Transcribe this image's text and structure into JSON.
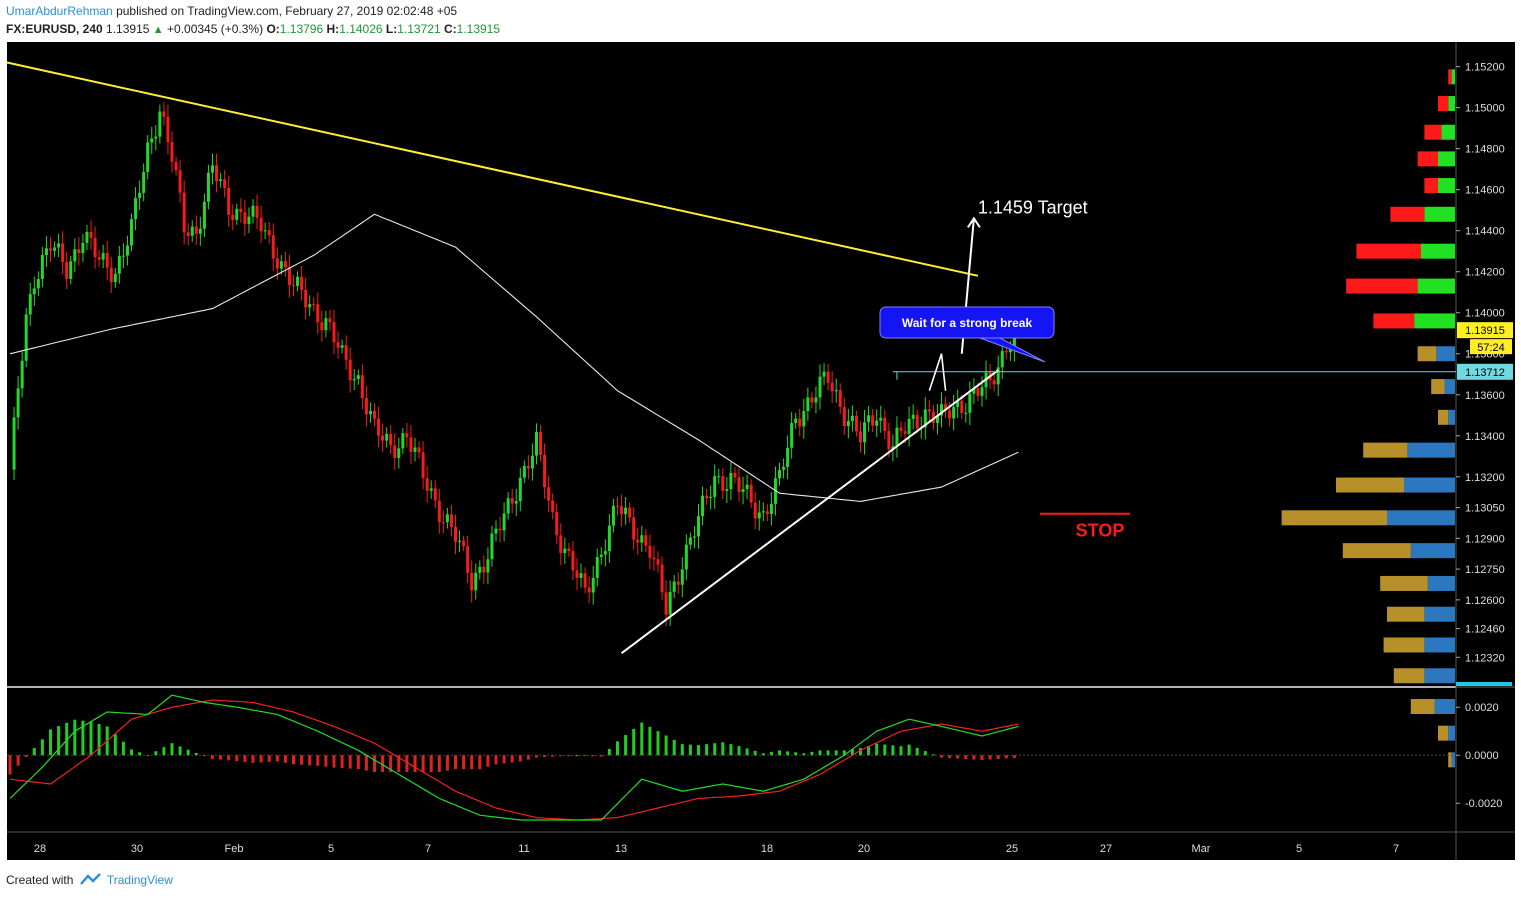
{
  "header": {
    "author": "UmarAbdurRehman",
    "published_text": "published on TradingView.com, February 27, 2019 02:02:48 +05",
    "symbol": "FX:EURUSD, 240",
    "last": "1.13915",
    "change": "+0.00345 (+0.3%)",
    "o_label": "O:",
    "o_value": "1.13796",
    "h_label": "H:",
    "h_value": "1.14026",
    "l_label": "L:",
    "l_value": "1.13721",
    "c_label": "C:",
    "c_value": "1.13915"
  },
  "footer": {
    "created_with": "Created with",
    "brand": "TradingView"
  },
  "colors": {
    "background": "#000000",
    "up": "#22d82a",
    "down": "#f51c1c",
    "trendline": "#ffee33",
    "ma": "#e8e8e8",
    "support": "#ffffff",
    "resistance": "#6fd8e0",
    "vp_up_green": "#22e022",
    "vp_down_red": "#ff1a1a",
    "vp_up_blue": "#2b78c0",
    "vp_down_gold": "#b8902a",
    "macd_line": "#22dd22",
    "signal_line": "#ee2222"
  },
  "annotations": {
    "target_label": "1.1459 Target",
    "callout": "Wait for a strong break",
    "stop_label": "STOP",
    "price_badge": "1.13915",
    "countdown": "57:24",
    "level_badge": "1.13712"
  },
  "chart_data": [
    {
      "type": "candlestick",
      "title": "FX:EURUSD, 240",
      "x_ticks": [
        "28",
        "30",
        "Feb",
        "5",
        "7",
        "11",
        "13",
        "18",
        "20",
        "25",
        "27",
        "Mar",
        "5",
        "7"
      ],
      "y_ticks": [
        "1.15200",
        "1.15000",
        "1.14800",
        "1.14600",
        "1.14400",
        "1.14200",
        "1.14000",
        "1.13800",
        "1.13600",
        "1.13400",
        "1.13200",
        "1.13050",
        "1.12900",
        "1.12750",
        "1.12600",
        "1.12460",
        "1.12320"
      ],
      "ylim": [
        1.1218,
        1.1532
      ],
      "anchor_closes": [
        [
          0,
          1.1321
        ],
        [
          2,
          1.1362
        ],
        [
          4,
          1.1398
        ],
        [
          6,
          1.1418
        ],
        [
          10,
          1.1432
        ],
        [
          14,
          1.1422
        ],
        [
          18,
          1.1438
        ],
        [
          22,
          1.1425
        ],
        [
          26,
          1.1421
        ],
        [
          30,
          1.144
        ],
        [
          34,
          1.148
        ],
        [
          37,
          1.15
        ],
        [
          40,
          1.1475
        ],
        [
          43,
          1.1442
        ],
        [
          46,
          1.144
        ],
        [
          50,
          1.147
        ],
        [
          54,
          1.1452
        ],
        [
          58,
          1.1448
        ],
        [
          62,
          1.1442
        ],
        [
          66,
          1.1428
        ],
        [
          70,
          1.1412
        ],
        [
          74,
          1.1405
        ],
        [
          78,
          1.1395
        ],
        [
          82,
          1.1378
        ],
        [
          86,
          1.1368
        ],
        [
          90,
          1.1342
        ],
        [
          94,
          1.1335
        ],
        [
          98,
          1.134
        ],
        [
          102,
          1.132
        ],
        [
          106,
          1.1305
        ],
        [
          110,
          1.129
        ],
        [
          114,
          1.127
        ],
        [
          118,
          1.1282
        ],
        [
          122,
          1.13
        ],
        [
          126,
          1.132
        ],
        [
          130,
          1.1335
        ],
        [
          134,
          1.13
        ],
        [
          138,
          1.128
        ],
        [
          142,
          1.1262
        ],
        [
          146,
          1.1285
        ],
        [
          150,
          1.1305
        ],
        [
          154,
          1.1295
        ],
        [
          158,
          1.1285
        ],
        [
          162,
          1.1255
        ],
        [
          166,
          1.128
        ],
        [
          170,
          1.1298
        ],
        [
          174,
          1.132
        ],
        [
          178,
          1.1318
        ],
        [
          182,
          1.131
        ],
        [
          186,
          1.1302
        ],
        [
          190,
          1.1318
        ],
        [
          194,
          1.135
        ],
        [
          198,
          1.1358
        ],
        [
          202,
          1.1368
        ],
        [
          206,
          1.1352
        ],
        [
          210,
          1.1338
        ],
        [
          214,
          1.1352
        ],
        [
          218,
          1.1335
        ],
        [
          222,
          1.1345
        ],
        [
          226,
          1.1352
        ],
        [
          230,
          1.1348
        ],
        [
          234,
          1.1355
        ],
        [
          238,
          1.136
        ],
        [
          242,
          1.1365
        ],
        [
          246,
          1.1385
        ],
        [
          249,
          1.1392
        ]
      ],
      "series": [
        {
          "name": "",
          "type": "ma",
          "points": [
            [
              0,
              1.138
            ],
            [
              25,
              1.1392
            ],
            [
              50,
              1.1402
            ],
            [
              75,
              1.1428
            ],
            [
              90,
              1.1448
            ],
            [
              110,
              1.1432
            ],
            [
              130,
              1.1398
            ],
            [
              150,
              1.1362
            ],
            [
              170,
              1.1338
            ],
            [
              190,
              1.1312
            ],
            [
              210,
              1.1308
            ],
            [
              230,
              1.1315
            ],
            [
              249,
              1.1332
            ]
          ]
        }
      ],
      "drawings": {
        "trendline": {
          "from": [
            0,
            1.1522
          ],
          "to": [
            239,
            1.1418
          ]
        },
        "support": {
          "from": [
            151,
            1.1234
          ],
          "to": [
            244,
            1.1372
          ]
        },
        "resistance_level": 1.13712,
        "target_arrow": {
          "from": [
            235,
            1.138
          ],
          "to": [
            238,
            1.1446
          ],
          "label_value": 1.1459
        },
        "stop_level": 1.1302
      }
    },
    {
      "type": "volume_profile",
      "bins": [
        {
          "price": 1.1515,
          "up": 0.02,
          "down": 0.02
        },
        {
          "price": 1.1502,
          "up": 0.04,
          "down": 0.06
        },
        {
          "price": 1.1488,
          "up": 0.08,
          "down": 0.1
        },
        {
          "price": 1.1475,
          "up": 0.1,
          "down": 0.12
        },
        {
          "price": 1.1462,
          "up": 0.1,
          "down": 0.08
        },
        {
          "price": 1.1448,
          "up": 0.18,
          "down": 0.2
        },
        {
          "price": 1.143,
          "up": 0.2,
          "down": 0.38
        },
        {
          "price": 1.1413,
          "up": 0.22,
          "down": 0.42
        },
        {
          "price": 1.1396,
          "up": 0.24,
          "down": 0.24
        },
        {
          "price": 1.138,
          "up": 0.11,
          "down": 0.11
        },
        {
          "price": 1.1364,
          "up": 0.06,
          "down": 0.08
        },
        {
          "price": 1.1349,
          "up": 0.04,
          "down": 0.06
        },
        {
          "price": 1.1333,
          "up": 0.28,
          "down": 0.26
        },
        {
          "price": 1.1316,
          "up": 0.3,
          "down": 0.4
        },
        {
          "price": 1.13,
          "up": 0.4,
          "down": 0.62
        },
        {
          "price": 1.1284,
          "up": 0.26,
          "down": 0.4
        },
        {
          "price": 1.1268,
          "up": 0.16,
          "down": 0.28
        },
        {
          "price": 1.1253,
          "up": 0.18,
          "down": 0.22
        },
        {
          "price": 1.1238,
          "up": 0.18,
          "down": 0.24
        },
        {
          "price": 1.1223,
          "up": 0.18,
          "down": 0.18
        },
        {
          "price": 1.1208,
          "up": 0.12,
          "down": 0.14
        },
        {
          "price": 1.1195,
          "up": 0.04,
          "down": 0.06
        },
        {
          "price": 1.1182,
          "up": 0.02,
          "down": 0.02
        }
      ]
    },
    {
      "type": "macd",
      "y_ticks": [
        "0.0020",
        "0.0000",
        "-0.0020"
      ],
      "ylim": [
        -0.0032,
        0.0028
      ],
      "series": [
        {
          "name": "",
          "points": [
            [
              0,
              -0.0018
            ],
            [
              8,
              -0.0005
            ],
            [
              16,
              0.001
            ],
            [
              24,
              0.0018
            ],
            [
              34,
              0.0017
            ],
            [
              40,
              0.0025
            ],
            [
              48,
              0.0022
            ],
            [
              56,
              0.002
            ],
            [
              66,
              0.0017
            ],
            [
              76,
              0.001
            ],
            [
              86,
              0.0002
            ],
            [
              96,
              -0.0008
            ],
            [
              106,
              -0.0018
            ],
            [
              116,
              -0.0025
            ],
            [
              126,
              -0.0027
            ],
            [
              136,
              -0.0027
            ],
            [
              146,
              -0.0027
            ],
            [
              156,
              -0.001
            ],
            [
              166,
              -0.0015
            ],
            [
              176,
              -0.0012
            ],
            [
              186,
              -0.0015
            ],
            [
              196,
              -0.001
            ],
            [
              206,
              0.0
            ],
            [
              214,
              0.001
            ],
            [
              222,
              0.0015
            ],
            [
              230,
              0.0012
            ],
            [
              240,
              0.0008
            ],
            [
              249,
              0.0012
            ]
          ]
        },
        {
          "name": "",
          "points": [
            [
              0,
              -0.001
            ],
            [
              10,
              -0.0012
            ],
            [
              20,
              0.0
            ],
            [
              30,
              0.0015
            ],
            [
              40,
              0.002
            ],
            [
              50,
              0.0023
            ],
            [
              60,
              0.0022
            ],
            [
              70,
              0.0018
            ],
            [
              80,
              0.0012
            ],
            [
              90,
              0.0005
            ],
            [
              100,
              -0.0005
            ],
            [
              110,
              -0.0015
            ],
            [
              120,
              -0.0022
            ],
            [
              130,
              -0.0026
            ],
            [
              140,
              -0.0027
            ],
            [
              150,
              -0.0026
            ],
            [
              160,
              -0.0022
            ],
            [
              170,
              -0.0018
            ],
            [
              180,
              -0.0017
            ],
            [
              190,
              -0.0015
            ],
            [
              200,
              -0.0008
            ],
            [
              210,
              0.0002
            ],
            [
              220,
              0.001
            ],
            [
              230,
              0.0013
            ],
            [
              240,
              0.001
            ],
            [
              249,
              0.0013
            ]
          ]
        }
      ]
    }
  ]
}
